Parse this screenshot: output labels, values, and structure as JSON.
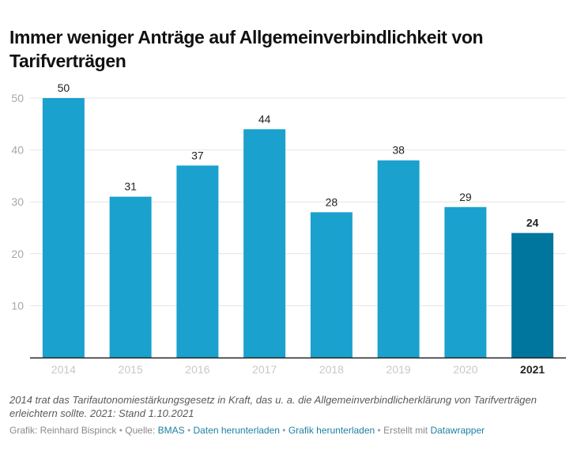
{
  "title": "Immer weniger Anträge auf Allgemeinverbindlichkeit von Tarifverträgen",
  "notes": "2014 trat das Tarifautonomiestärkungsgesetz in Kraft, das u. a. die Allgemeinverbindlicherklärung von Tarifverträgen erleichtern sollte. 2021: Stand 1.10.2021",
  "byline": {
    "grafik_label": "Grafik: Reinhard Bispinck",
    "quelle_label": "Quelle: ",
    "source_link": "BMAS",
    "data_link": "Daten herunterladen",
    "image_link": "Grafik herunterladen",
    "made_with_label": "Erstellt mit ",
    "tool_link": "Datawrapper",
    "separator": " • "
  },
  "colors": {
    "bar": "#1aa1cd",
    "highlight_bar": "#00769f",
    "link": "#1d81a2"
  },
  "chart_data": {
    "type": "bar",
    "title": "Immer weniger Anträge auf Allgemeinverbindlichkeit von Tarifverträgen",
    "xlabel": "",
    "ylabel": "",
    "categories": [
      "2014",
      "2015",
      "2016",
      "2017",
      "2018",
      "2019",
      "2020",
      "2021"
    ],
    "values": [
      50,
      31,
      37,
      44,
      28,
      38,
      29,
      24
    ],
    "highlighted": [
      "2021"
    ],
    "ylim": [
      0,
      50
    ],
    "yticks": [
      10,
      20,
      30,
      40,
      50
    ],
    "grid": true,
    "legend": "none"
  }
}
